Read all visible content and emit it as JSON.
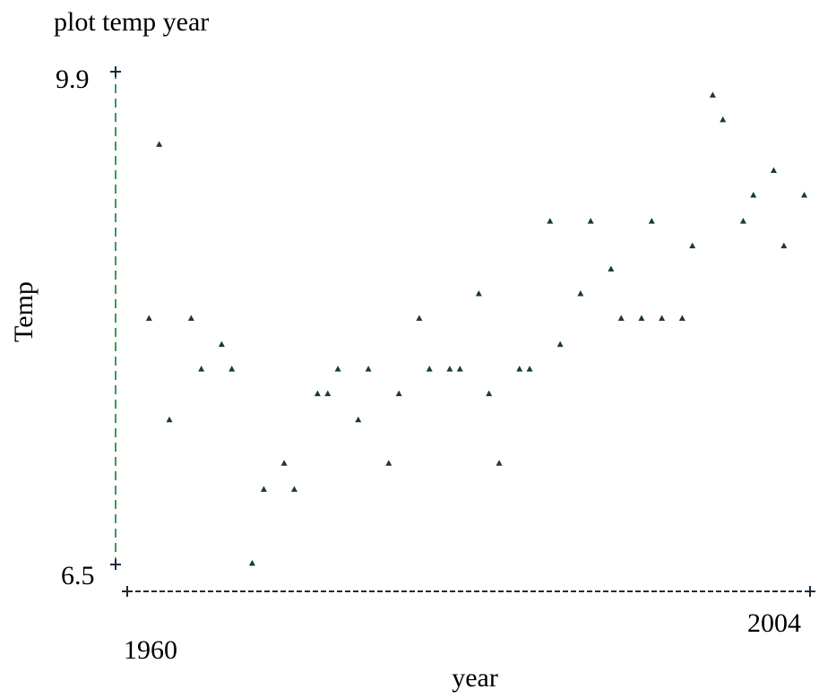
{
  "chart_data": {
    "type": "scatter",
    "title": "plot temp year",
    "xlabel": "year",
    "ylabel": "Temp",
    "xlim": [
      1957,
      2004
    ],
    "ylim": [
      6.5,
      9.9
    ],
    "x_ticks": [
      "1960",
      "2004"
    ],
    "y_ticks": [
      "9.9",
      "6.5"
    ],
    "grid": false,
    "marker": "triangle",
    "colors": {
      "x_axis": "#1a2a3a",
      "y_axis": "#3a9a5a",
      "marker": "#1a3a3a"
    },
    "points": [
      {
        "x": 1958.5,
        "y": 8.2
      },
      {
        "x": 1959.2,
        "y": 9.4
      },
      {
        "x": 1959.9,
        "y": 7.5
      },
      {
        "x": 1961.4,
        "y": 8.2
      },
      {
        "x": 1962.1,
        "y": 7.85
      },
      {
        "x": 1963.5,
        "y": 8.02
      },
      {
        "x": 1964.2,
        "y": 7.85
      },
      {
        "x": 1965.6,
        "y": 6.51
      },
      {
        "x": 1966.4,
        "y": 7.02
      },
      {
        "x": 1967.8,
        "y": 7.2
      },
      {
        "x": 1968.5,
        "y": 7.02
      },
      {
        "x": 1970.1,
        "y": 7.68
      },
      {
        "x": 1970.8,
        "y": 7.68
      },
      {
        "x": 1971.5,
        "y": 7.85
      },
      {
        "x": 1972.9,
        "y": 7.5
      },
      {
        "x": 1973.6,
        "y": 7.85
      },
      {
        "x": 1975.0,
        "y": 7.2
      },
      {
        "x": 1975.7,
        "y": 7.68
      },
      {
        "x": 1977.1,
        "y": 8.2
      },
      {
        "x": 1977.8,
        "y": 7.85
      },
      {
        "x": 1979.2,
        "y": 7.85
      },
      {
        "x": 1979.9,
        "y": 7.85
      },
      {
        "x": 1981.2,
        "y": 8.37
      },
      {
        "x": 1981.9,
        "y": 7.68
      },
      {
        "x": 1982.6,
        "y": 7.2
      },
      {
        "x": 1984.0,
        "y": 7.85
      },
      {
        "x": 1984.7,
        "y": 7.85
      },
      {
        "x": 1986.1,
        "y": 8.87
      },
      {
        "x": 1986.8,
        "y": 8.02
      },
      {
        "x": 1988.2,
        "y": 8.37
      },
      {
        "x": 1988.9,
        "y": 8.87
      },
      {
        "x": 1990.3,
        "y": 8.54
      },
      {
        "x": 1991.0,
        "y": 8.2
      },
      {
        "x": 1992.4,
        "y": 8.2
      },
      {
        "x": 1993.1,
        "y": 8.87
      },
      {
        "x": 1993.8,
        "y": 8.2
      },
      {
        "x": 1995.2,
        "y": 8.2
      },
      {
        "x": 1995.9,
        "y": 8.7
      },
      {
        "x": 1997.3,
        "y": 9.74
      },
      {
        "x": 1998.0,
        "y": 9.57
      },
      {
        "x": 1999.4,
        "y": 8.87
      },
      {
        "x": 2000.1,
        "y": 9.05
      },
      {
        "x": 2001.5,
        "y": 9.22
      },
      {
        "x": 2002.2,
        "y": 8.7
      },
      {
        "x": 2003.6,
        "y": 9.05
      }
    ]
  }
}
